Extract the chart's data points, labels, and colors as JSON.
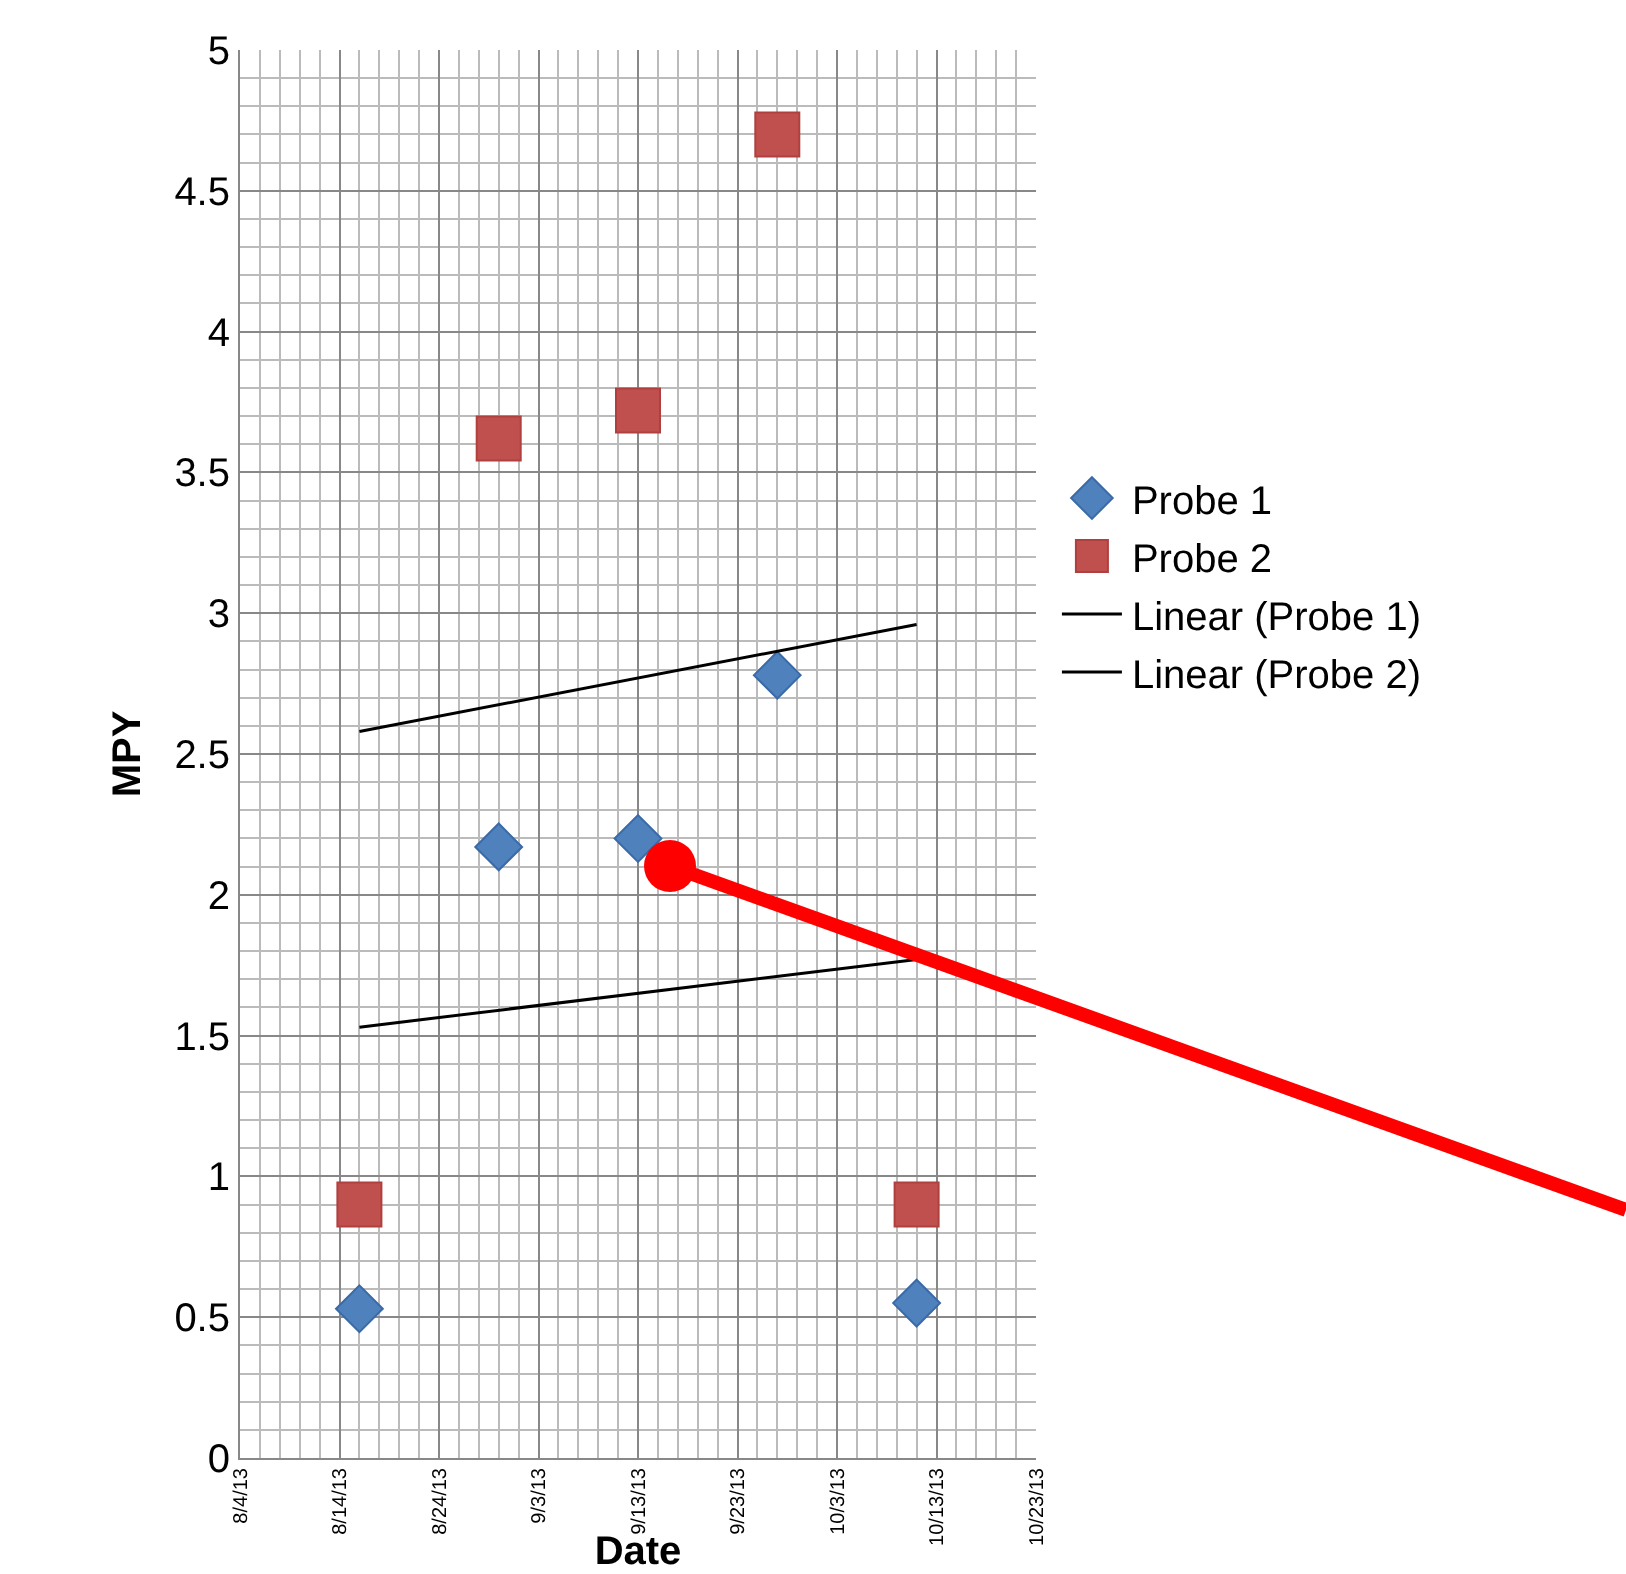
{
  "chart_data": {
    "type": "scatter",
    "xlabel": "Date",
    "ylabel": "MPY",
    "xlim": [
      "--08-04",
      "--10-23"
    ],
    "xticks": [
      {
        "value": "--08-04",
        "label": "8/4/13"
      },
      {
        "value": "--08-14",
        "label": "8/14/13"
      },
      {
        "value": "--08-24",
        "label": "8/24/13"
      },
      {
        "value": "--09-03",
        "label": "9/3/13"
      },
      {
        "value": "--09-13",
        "label": "9/13/13"
      },
      {
        "value": "--09-23",
        "label": "9/23/13"
      },
      {
        "value": "--10-03",
        "label": "10/3/13"
      },
      {
        "value": "--10-13",
        "label": "10/13/13"
      },
      {
        "value": "--10-23",
        "label": "10/23/13"
      }
    ],
    "ylim": [
      0,
      5
    ],
    "yticks": [
      0,
      0.5,
      1,
      1.5,
      2,
      2.5,
      3,
      3.5,
      4,
      4.5,
      5
    ],
    "grid": true,
    "legend": "right",
    "series": [
      {
        "name": "Probe 1",
        "color": "#4f81bd",
        "marker": "diamond",
        "x": [
          "--08-16",
          "--08-30",
          "--09-13",
          "--09-27",
          "--10-11"
        ],
        "values": [
          0.53,
          2.17,
          2.2,
          2.78,
          0.55
        ]
      },
      {
        "name": "Probe 2",
        "color": "#c0504d",
        "marker": "square",
        "x": [
          "--08-16",
          "--08-30",
          "--09-13",
          "--09-27",
          "--10-11"
        ],
        "values": [
          0.9,
          3.62,
          3.72,
          4.7,
          0.9
        ]
      },
      {
        "name": "Linear (Probe 1)",
        "type": "line",
        "color": "#000000",
        "marker": "none",
        "x": [
          "--08-16",
          "--10-11"
        ],
        "values": [
          1.53,
          1.77
        ]
      },
      {
        "name": "Linear (Probe 2)",
        "type": "line",
        "color": "#000000",
        "marker": "none",
        "x": [
          "--08-16",
          "--10-11"
        ],
        "values": [
          2.58,
          2.96
        ]
      }
    ]
  }
}
